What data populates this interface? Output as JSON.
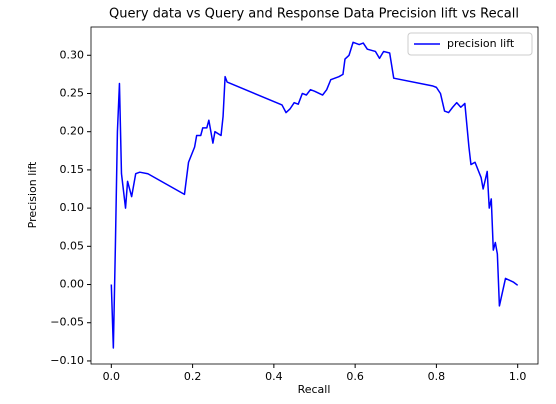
{
  "chart_data": {
    "type": "line",
    "title": "Query data vs Query and Response Data Precision lift vs Recall",
    "xlabel": "Recall",
    "ylabel": "Precision lift",
    "legend": "upper right",
    "xlim": [
      -0.05,
      1.05
    ],
    "ylim": [
      -0.104,
      0.337
    ],
    "xticks": [
      {
        "value": 0,
        "label": "0.0"
      },
      {
        "value": 0.2,
        "label": "0.2"
      },
      {
        "value": 0.4,
        "label": "0.4"
      },
      {
        "value": 0.6,
        "label": "0.6"
      },
      {
        "value": 0.8,
        "label": "0.8"
      },
      {
        "value": 1,
        "label": "1.0"
      }
    ],
    "yticks": [
      {
        "value": -0.1,
        "label": "−0.10"
      },
      {
        "value": -0.05,
        "label": "−0.05"
      },
      {
        "value": 0,
        "label": "0.00"
      },
      {
        "value": 0.05,
        "label": "0.05"
      },
      {
        "value": 0.1,
        "label": "0.10"
      },
      {
        "value": 0.15,
        "label": "0.15"
      },
      {
        "value": 0.2,
        "label": "0.20"
      },
      {
        "value": 0.25,
        "label": "0.25"
      },
      {
        "value": 0.3,
        "label": "0.30"
      }
    ],
    "x": [
      0.0,
      0.005,
      0.01,
      0.015,
      0.02,
      0.025,
      0.035,
      0.04,
      0.05,
      0.06,
      0.07,
      0.09,
      0.18,
      0.19,
      0.205,
      0.21,
      0.22,
      0.225,
      0.235,
      0.24,
      0.25,
      0.255,
      0.27,
      0.275,
      0.28,
      0.285,
      0.42,
      0.43,
      0.44,
      0.45,
      0.46,
      0.47,
      0.48,
      0.49,
      0.5,
      0.52,
      0.53,
      0.54,
      0.56,
      0.57,
      0.575,
      0.585,
      0.595,
      0.61,
      0.62,
      0.63,
      0.65,
      0.66,
      0.67,
      0.685,
      0.695,
      0.79,
      0.8,
      0.81,
      0.82,
      0.83,
      0.84,
      0.85,
      0.86,
      0.87,
      0.88,
      0.885,
      0.895,
      0.91,
      0.915,
      0.925,
      0.93,
      0.935,
      0.94,
      0.945,
      0.95,
      0.955,
      0.97,
      0.99,
      1.0
    ],
    "series": [
      {
        "name": "precision lift",
        "color": "#0000ff",
        "values": [
          0.0,
          -0.083,
          0.05,
          0.2,
          0.263,
          0.145,
          0.1,
          0.135,
          0.115,
          0.145,
          0.147,
          0.145,
          0.118,
          0.16,
          0.18,
          0.195,
          0.195,
          0.205,
          0.205,
          0.215,
          0.185,
          0.2,
          0.195,
          0.22,
          0.272,
          0.265,
          0.235,
          0.225,
          0.23,
          0.238,
          0.236,
          0.25,
          0.248,
          0.255,
          0.253,
          0.248,
          0.255,
          0.268,
          0.272,
          0.275,
          0.295,
          0.3,
          0.317,
          0.314,
          0.316,
          0.308,
          0.305,
          0.296,
          0.305,
          0.303,
          0.27,
          0.26,
          0.258,
          0.25,
          0.227,
          0.225,
          0.232,
          0.238,
          0.232,
          0.237,
          0.18,
          0.157,
          0.16,
          0.14,
          0.125,
          0.148,
          0.1,
          0.112,
          0.045,
          0.055,
          0.04,
          -0.028,
          0.008,
          0.003,
          -0.001
        ]
      }
    ]
  }
}
